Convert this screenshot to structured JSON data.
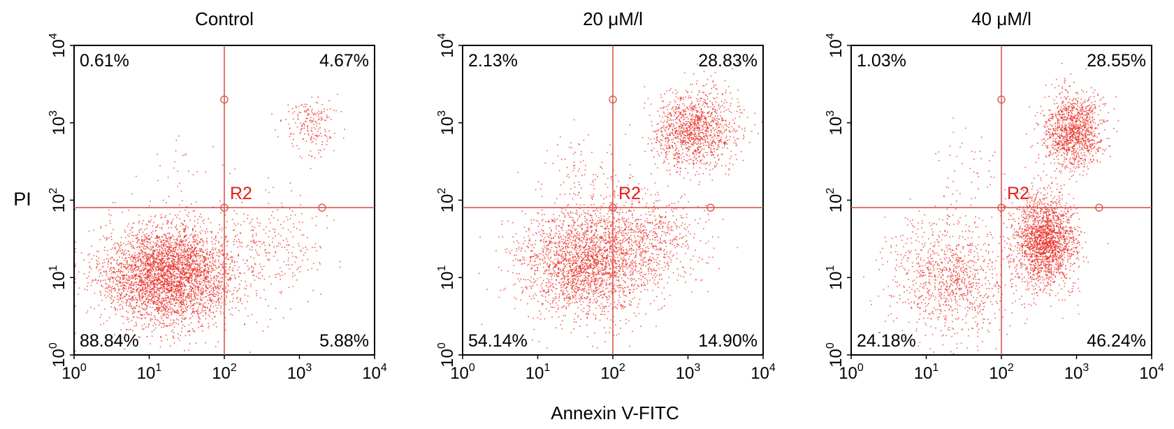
{
  "figure": {
    "y_axis_label": "PI",
    "x_axis_label": "Annexin V-FITC",
    "gate_label": "R2"
  },
  "chart_data": [
    {
      "type": "scatter",
      "title": "Control",
      "xlabel": "",
      "ylabel": "PI",
      "xscale": "log",
      "yscale": "log",
      "xlim": [
        1,
        10000
      ],
      "ylim": [
        1,
        10000
      ],
      "x_ticks": [
        "10^0",
        "10^1",
        "10^2",
        "10^3",
        "10^4"
      ],
      "y_ticks": [
        "10^0",
        "10^1",
        "10^2",
        "10^3",
        "10^4"
      ],
      "gate": {
        "name": "R2",
        "x": 100,
        "y": 80
      },
      "quadrants": {
        "upper_left": "0.61%",
        "upper_right": "4.67%",
        "lower_left": "88.84%",
        "lower_right": "5.88%"
      },
      "populations": [
        {
          "region": "viable",
          "center": [
            18,
            11
          ],
          "spread": [
            0.45,
            0.32
          ],
          "share": 0.8884
        },
        {
          "region": "early-apoptotic",
          "center": [
            400,
            28
          ],
          "spread": [
            0.35,
            0.3
          ],
          "share": 0.0588
        },
        {
          "region": "late-apoptotic",
          "center": [
            1400,
            1000
          ],
          "spread": [
            0.18,
            0.18
          ],
          "share": 0.0467
        },
        {
          "region": "necrotic",
          "center": [
            30,
            300
          ],
          "spread": [
            0.3,
            0.3
          ],
          "share": 0.0061
        }
      ]
    },
    {
      "type": "scatter",
      "title": "20 μM/l",
      "xlabel": "Annexin V-FITC",
      "ylabel": "",
      "xscale": "log",
      "yscale": "log",
      "xlim": [
        1,
        10000
      ],
      "ylim": [
        1,
        10000
      ],
      "x_ticks": [
        "10^0",
        "10^1",
        "10^2",
        "10^3",
        "10^4"
      ],
      "y_ticks": [
        "10^0",
        "10^1",
        "10^2",
        "10^3",
        "10^4"
      ],
      "gate": {
        "name": "R2",
        "x": 100,
        "y": 80
      },
      "quadrants": {
        "upper_left": "2.13%",
        "upper_right": "28.83%",
        "lower_left": "54.14%",
        "lower_right": "14.90%"
      },
      "populations": [
        {
          "region": "viable",
          "center": [
            40,
            16
          ],
          "spread": [
            0.42,
            0.35
          ],
          "share": 0.5414
        },
        {
          "region": "early-apoptotic",
          "center": [
            300,
            30
          ],
          "spread": [
            0.35,
            0.3
          ],
          "share": 0.149
        },
        {
          "region": "late-apoptotic",
          "center": [
            1200,
            800
          ],
          "spread": [
            0.28,
            0.25
          ],
          "share": 0.2883
        },
        {
          "region": "necrotic",
          "center": [
            40,
            250
          ],
          "spread": [
            0.3,
            0.3
          ],
          "share": 0.0213
        }
      ]
    },
    {
      "type": "scatter",
      "title": "40 μM/l",
      "xlabel": "",
      "ylabel": "",
      "xscale": "log",
      "yscale": "log",
      "xlim": [
        1,
        10000
      ],
      "ylim": [
        1,
        10000
      ],
      "x_ticks": [
        "10^0",
        "10^1",
        "10^2",
        "10^3",
        "10^4"
      ],
      "y_ticks": [
        "10^0",
        "10^1",
        "10^2",
        "10^3",
        "10^4"
      ],
      "gate": {
        "name": "R2",
        "x": 100,
        "y": 80
      },
      "quadrants": {
        "upper_left": "1.03%",
        "upper_right": "28.55%",
        "lower_left": "24.18%",
        "lower_right": "46.24%"
      },
      "populations": [
        {
          "region": "viable",
          "center": [
            20,
            10
          ],
          "spread": [
            0.4,
            0.4
          ],
          "share": 0.2418
        },
        {
          "region": "early-apoptotic",
          "center": [
            380,
            30
          ],
          "spread": [
            0.2,
            0.3
          ],
          "share": 0.4624
        },
        {
          "region": "late-apoptotic",
          "center": [
            900,
            800
          ],
          "spread": [
            0.2,
            0.25
          ],
          "share": 0.2855
        },
        {
          "region": "necrotic",
          "center": [
            40,
            250
          ],
          "spread": [
            0.3,
            0.3
          ],
          "share": 0.0103
        }
      ]
    }
  ],
  "colors": {
    "dots": "#e8251c",
    "gate": "#d9574f",
    "gate_label": "#e0201a",
    "frame": "#000000",
    "text": "#000000"
  }
}
